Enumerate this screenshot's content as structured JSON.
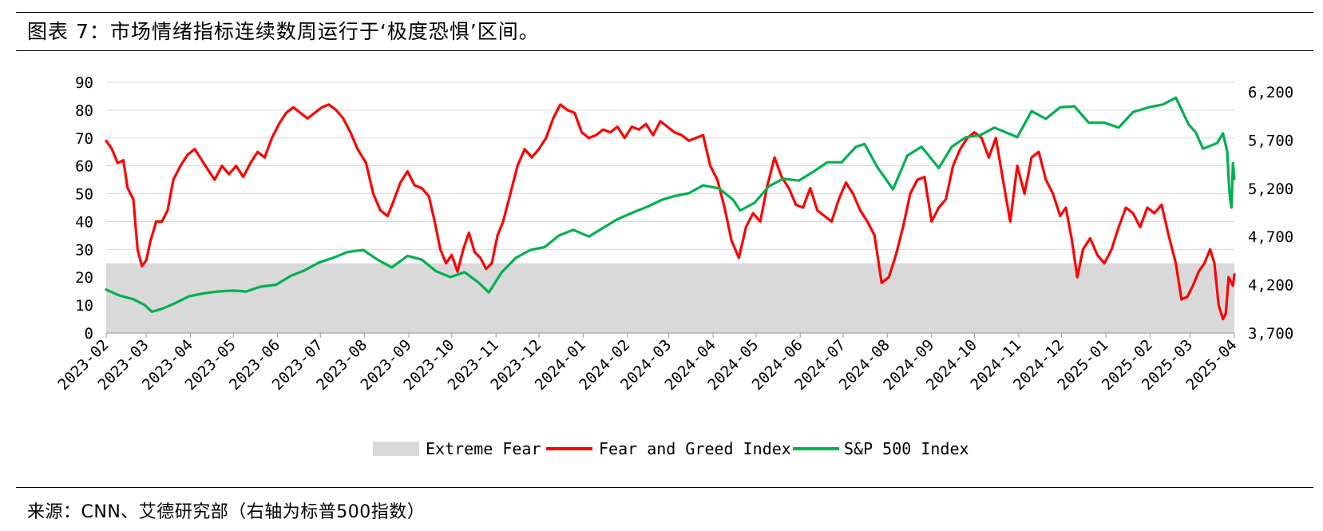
{
  "figure": {
    "title": "图表 7：市场情绪指标连续数周运行于‘极度恐惧’区间。",
    "source": "来源：CNN、艾德研究部（右轴为标普500指数）"
  },
  "chart_data": {
    "type": "line",
    "title": "",
    "x_axis": {
      "type": "date",
      "range": [
        "2023-02-01",
        "2025-04-01"
      ],
      "tick_labels": [
        "2023-02",
        "2023-03",
        "2023-04",
        "2023-05",
        "2023-06",
        "2023-07",
        "2023-08",
        "2023-09",
        "2023-10",
        "2023-11",
        "2023-12",
        "2024-01",
        "2024-02",
        "2024-03",
        "2024-04",
        "2024-05",
        "2024-06",
        "2024-07",
        "2024-08",
        "2024-09",
        "2024-10",
        "2024-11",
        "2024-12",
        "2025-01",
        "2025-02",
        "2025-03",
        "2025-04"
      ]
    },
    "y_left": {
      "range": [
        0,
        90
      ],
      "ticks": [
        "0",
        "10",
        "20",
        "30",
        "40",
        "50",
        "60",
        "70",
        "80",
        "90"
      ]
    },
    "y_right": {
      "range": [
        3700,
        6300
      ],
      "ticks": [
        "3,700",
        "4,200",
        "4,700",
        "5,200",
        "5,700",
        "6,200"
      ]
    },
    "grid": "horizontal",
    "legend_position": "bottom",
    "extreme_fear": {
      "name": "Extreme Fear",
      "range": [
        0,
        25
      ],
      "color": "#d9d9d9"
    },
    "series": [
      {
        "name": "Fear and Greed Index",
        "axis": "left",
        "color": "#ff0000",
        "points": [
          [
            "2023-02-01",
            69
          ],
          [
            "2023-02-05",
            66
          ],
          [
            "2023-02-09",
            61
          ],
          [
            "2023-02-13",
            62
          ],
          [
            "2023-02-16",
            52
          ],
          [
            "2023-02-20",
            48
          ],
          [
            "2023-02-23",
            30
          ],
          [
            "2023-02-26",
            24
          ],
          [
            "2023-03-01",
            26
          ],
          [
            "2023-03-04",
            33
          ],
          [
            "2023-03-08",
            40
          ],
          [
            "2023-03-12",
            40
          ],
          [
            "2023-03-16",
            44
          ],
          [
            "2023-03-20",
            55
          ],
          [
            "2023-03-25",
            60
          ],
          [
            "2023-03-30",
            64
          ],
          [
            "2023-04-04",
            66
          ],
          [
            "2023-04-09",
            62
          ],
          [
            "2023-04-14",
            58
          ],
          [
            "2023-04-18",
            55
          ],
          [
            "2023-04-23",
            60
          ],
          [
            "2023-04-28",
            57
          ],
          [
            "2023-05-03",
            60
          ],
          [
            "2023-05-08",
            56
          ],
          [
            "2023-05-13",
            61
          ],
          [
            "2023-05-18",
            65
          ],
          [
            "2023-05-23",
            63
          ],
          [
            "2023-05-28",
            70
          ],
          [
            "2023-06-02",
            75
          ],
          [
            "2023-06-07",
            79
          ],
          [
            "2023-06-12",
            81
          ],
          [
            "2023-06-17",
            79
          ],
          [
            "2023-06-22",
            77
          ],
          [
            "2023-06-27",
            79
          ],
          [
            "2023-07-02",
            81
          ],
          [
            "2023-07-07",
            82
          ],
          [
            "2023-07-12",
            80
          ],
          [
            "2023-07-17",
            77
          ],
          [
            "2023-07-22",
            72
          ],
          [
            "2023-07-27",
            66
          ],
          [
            "2023-08-02",
            61
          ],
          [
            "2023-08-07",
            50
          ],
          [
            "2023-08-12",
            44
          ],
          [
            "2023-08-17",
            42
          ],
          [
            "2023-08-21",
            47
          ],
          [
            "2023-08-26",
            54
          ],
          [
            "2023-08-31",
            58
          ],
          [
            "2023-09-05",
            53
          ],
          [
            "2023-09-10",
            52
          ],
          [
            "2023-09-15",
            49
          ],
          [
            "2023-09-19",
            40
          ],
          [
            "2023-09-23",
            30
          ],
          [
            "2023-09-27",
            25
          ],
          [
            "2023-10-01",
            28
          ],
          [
            "2023-10-05",
            22
          ],
          [
            "2023-10-09",
            30
          ],
          [
            "2023-10-13",
            36
          ],
          [
            "2023-10-17",
            29
          ],
          [
            "2023-10-21",
            27
          ],
          [
            "2023-10-25",
            23
          ],
          [
            "2023-10-29",
            25
          ],
          [
            "2023-11-02",
            35
          ],
          [
            "2023-11-06",
            40
          ],
          [
            "2023-11-11",
            50
          ],
          [
            "2023-11-16",
            60
          ],
          [
            "2023-11-21",
            66
          ],
          [
            "2023-11-26",
            63
          ],
          [
            "2023-12-01",
            66
          ],
          [
            "2023-12-06",
            70
          ],
          [
            "2023-12-11",
            77
          ],
          [
            "2023-12-16",
            82
          ],
          [
            "2023-12-21",
            80
          ],
          [
            "2023-12-26",
            79
          ],
          [
            "2023-12-31",
            72
          ],
          [
            "2024-01-05",
            70
          ],
          [
            "2024-01-10",
            71
          ],
          [
            "2024-01-15",
            73
          ],
          [
            "2024-01-20",
            72
          ],
          [
            "2024-01-25",
            74
          ],
          [
            "2024-01-30",
            70
          ],
          [
            "2024-02-04",
            74
          ],
          [
            "2024-02-09",
            73
          ],
          [
            "2024-02-14",
            75
          ],
          [
            "2024-02-19",
            71
          ],
          [
            "2024-02-24",
            76
          ],
          [
            "2024-02-29",
            74
          ],
          [
            "2024-03-05",
            72
          ],
          [
            "2024-03-10",
            71
          ],
          [
            "2024-03-15",
            69
          ],
          [
            "2024-03-20",
            70
          ],
          [
            "2024-03-25",
            71
          ],
          [
            "2024-03-30",
            60
          ],
          [
            "2024-04-04",
            55
          ],
          [
            "2024-04-09",
            45
          ],
          [
            "2024-04-14",
            33
          ],
          [
            "2024-04-19",
            27
          ],
          [
            "2024-04-24",
            38
          ],
          [
            "2024-04-29",
            43
          ],
          [
            "2024-05-04",
            40
          ],
          [
            "2024-05-09",
            53
          ],
          [
            "2024-05-14",
            63
          ],
          [
            "2024-05-19",
            56
          ],
          [
            "2024-05-24",
            52
          ],
          [
            "2024-05-29",
            46
          ],
          [
            "2024-06-03",
            45
          ],
          [
            "2024-06-08",
            52
          ],
          [
            "2024-06-13",
            44
          ],
          [
            "2024-06-18",
            42
          ],
          [
            "2024-06-23",
            40
          ],
          [
            "2024-06-28",
            48
          ],
          [
            "2024-07-03",
            54
          ],
          [
            "2024-07-08",
            50
          ],
          [
            "2024-07-13",
            44
          ],
          [
            "2024-07-18",
            40
          ],
          [
            "2024-07-23",
            35
          ],
          [
            "2024-07-28",
            18
          ],
          [
            "2024-08-02",
            20
          ],
          [
            "2024-08-07",
            28
          ],
          [
            "2024-08-12",
            38
          ],
          [
            "2024-08-17",
            50
          ],
          [
            "2024-08-22",
            55
          ],
          [
            "2024-08-27",
            56
          ],
          [
            "2024-09-01",
            40
          ],
          [
            "2024-09-06",
            45
          ],
          [
            "2024-09-11",
            48
          ],
          [
            "2024-09-16",
            60
          ],
          [
            "2024-09-21",
            66
          ],
          [
            "2024-09-26",
            70
          ],
          [
            "2024-10-01",
            72
          ],
          [
            "2024-10-06",
            70
          ],
          [
            "2024-10-11",
            63
          ],
          [
            "2024-10-16",
            70
          ],
          [
            "2024-10-21",
            55
          ],
          [
            "2024-10-26",
            40
          ],
          [
            "2024-10-31",
            60
          ],
          [
            "2024-11-05",
            50
          ],
          [
            "2024-11-10",
            63
          ],
          [
            "2024-11-15",
            65
          ],
          [
            "2024-11-20",
            55
          ],
          [
            "2024-11-25",
            50
          ],
          [
            "2024-11-30",
            42
          ],
          [
            "2024-12-04",
            45
          ],
          [
            "2024-12-08",
            34
          ],
          [
            "2024-12-12",
            20
          ],
          [
            "2024-12-16",
            30
          ],
          [
            "2024-12-21",
            34
          ],
          [
            "2024-12-26",
            28
          ],
          [
            "2024-12-31",
            25
          ],
          [
            "2025-01-05",
            30
          ],
          [
            "2025-01-10",
            38
          ],
          [
            "2025-01-15",
            45
          ],
          [
            "2025-01-20",
            43
          ],
          [
            "2025-01-25",
            38
          ],
          [
            "2025-01-30",
            45
          ],
          [
            "2025-02-04",
            43
          ],
          [
            "2025-02-09",
            46
          ],
          [
            "2025-02-14",
            35
          ],
          [
            "2025-02-19",
            25
          ],
          [
            "2025-02-23",
            12
          ],
          [
            "2025-02-27",
            13
          ],
          [
            "2025-03-03",
            17
          ],
          [
            "2025-03-07",
            22
          ],
          [
            "2025-03-11",
            25
          ],
          [
            "2025-03-15",
            30
          ],
          [
            "2025-03-18",
            25
          ],
          [
            "2025-03-21",
            10
          ],
          [
            "2025-03-24",
            5
          ],
          [
            "2025-03-26",
            7
          ],
          [
            "2025-03-28",
            20
          ],
          [
            "2025-03-31",
            17
          ],
          [
            "2025-04-01",
            21
          ]
        ]
      },
      {
        "name": "S&P 500 Index",
        "axis": "right",
        "color": "#00b050",
        "points": [
          [
            "2023-02-01",
            4150
          ],
          [
            "2023-02-10",
            4090
          ],
          [
            "2023-02-20",
            4050
          ],
          [
            "2023-02-28",
            3990
          ],
          [
            "2023-03-05",
            3920
          ],
          [
            "2023-03-12",
            3950
          ],
          [
            "2023-03-20",
            4000
          ],
          [
            "2023-03-31",
            4080
          ],
          [
            "2023-04-10",
            4110
          ],
          [
            "2023-04-20",
            4130
          ],
          [
            "2023-05-01",
            4140
          ],
          [
            "2023-05-10",
            4130
          ],
          [
            "2023-05-20",
            4180
          ],
          [
            "2023-05-31",
            4200
          ],
          [
            "2023-06-10",
            4290
          ],
          [
            "2023-06-20",
            4350
          ],
          [
            "2023-06-30",
            4430
          ],
          [
            "2023-07-10",
            4480
          ],
          [
            "2023-07-20",
            4540
          ],
          [
            "2023-07-31",
            4560
          ],
          [
            "2023-08-10",
            4460
          ],
          [
            "2023-08-20",
            4380
          ],
          [
            "2023-08-31",
            4500
          ],
          [
            "2023-09-10",
            4460
          ],
          [
            "2023-09-20",
            4340
          ],
          [
            "2023-09-30",
            4280
          ],
          [
            "2023-10-10",
            4330
          ],
          [
            "2023-10-20",
            4220
          ],
          [
            "2023-10-27",
            4120
          ],
          [
            "2023-11-05",
            4330
          ],
          [
            "2023-11-15",
            4480
          ],
          [
            "2023-11-25",
            4560
          ],
          [
            "2023-12-05",
            4590
          ],
          [
            "2023-12-15",
            4710
          ],
          [
            "2023-12-25",
            4770
          ],
          [
            "2024-01-05",
            4700
          ],
          [
            "2024-01-15",
            4790
          ],
          [
            "2024-01-25",
            4880
          ],
          [
            "2024-02-05",
            4950
          ],
          [
            "2024-02-15",
            5010
          ],
          [
            "2024-02-25",
            5080
          ],
          [
            "2024-03-05",
            5120
          ],
          [
            "2024-03-15",
            5150
          ],
          [
            "2024-03-25",
            5230
          ],
          [
            "2024-04-05",
            5200
          ],
          [
            "2024-04-15",
            5080
          ],
          [
            "2024-04-20",
            4970
          ],
          [
            "2024-04-30",
            5050
          ],
          [
            "2024-05-10",
            5220
          ],
          [
            "2024-05-20",
            5300
          ],
          [
            "2024-05-31",
            5280
          ],
          [
            "2024-06-10",
            5370
          ],
          [
            "2024-06-20",
            5470
          ],
          [
            "2024-06-30",
            5470
          ],
          [
            "2024-07-10",
            5630
          ],
          [
            "2024-07-16",
            5660
          ],
          [
            "2024-07-25",
            5420
          ],
          [
            "2024-08-05",
            5190
          ],
          [
            "2024-08-15",
            5540
          ],
          [
            "2024-08-25",
            5630
          ],
          [
            "2024-09-06",
            5410
          ],
          [
            "2024-09-15",
            5630
          ],
          [
            "2024-09-25",
            5730
          ],
          [
            "2024-10-05",
            5750
          ],
          [
            "2024-10-15",
            5830
          ],
          [
            "2024-10-31",
            5730
          ],
          [
            "2024-11-10",
            6000
          ],
          [
            "2024-11-20",
            5920
          ],
          [
            "2024-11-30",
            6040
          ],
          [
            "2024-12-10",
            6050
          ],
          [
            "2024-12-20",
            5880
          ],
          [
            "2024-12-31",
            5880
          ],
          [
            "2025-01-10",
            5830
          ],
          [
            "2025-01-20",
            5990
          ],
          [
            "2025-01-31",
            6040
          ],
          [
            "2025-02-10",
            6070
          ],
          [
            "2025-02-19",
            6140
          ],
          [
            "2025-02-28",
            5860
          ],
          [
            "2025-03-05",
            5780
          ],
          [
            "2025-03-10",
            5610
          ],
          [
            "2025-03-15",
            5640
          ],
          [
            "2025-03-20",
            5670
          ],
          [
            "2025-03-24",
            5770
          ],
          [
            "2025-03-27",
            5580
          ],
          [
            "2025-03-28",
            5300
          ],
          [
            "2025-03-29",
            5090
          ],
          [
            "2025-03-30",
            5000
          ],
          [
            "2025-03-31",
            5460
          ],
          [
            "2025-04-01",
            5300
          ]
        ]
      }
    ]
  }
}
